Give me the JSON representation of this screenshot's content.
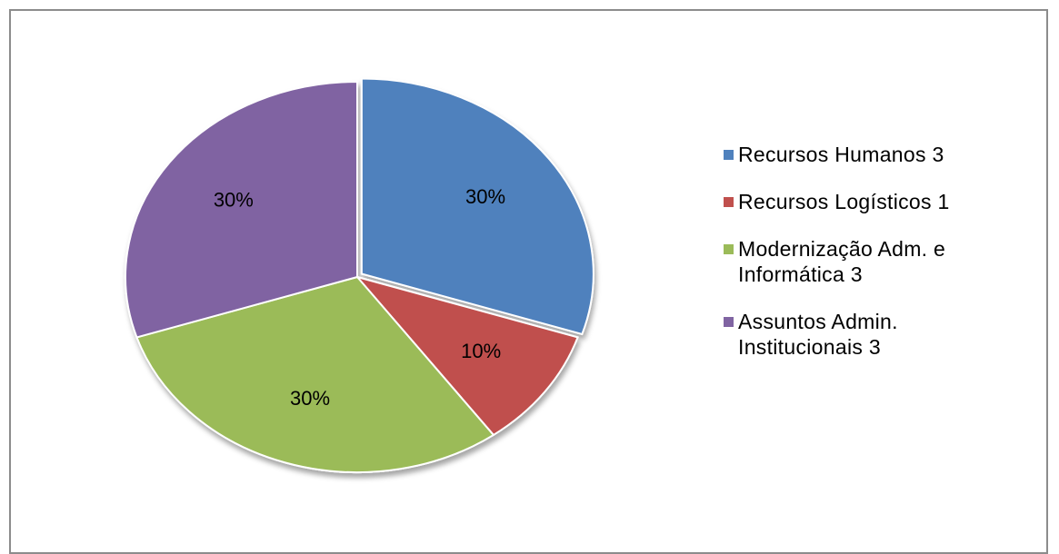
{
  "chart_data": {
    "type": "pie",
    "categories": [
      "Recursos Humanos 3",
      "Recursos Logísticos 1",
      "Modernização Adm. e Informática 3",
      "Assuntos Admin. Institucionais 3"
    ],
    "values": [
      30,
      10,
      30,
      30
    ],
    "value_labels": [
      "30%",
      "10%",
      "30%",
      "30%"
    ],
    "colors": [
      "#4f81bd",
      "#c0504d",
      "#9bbb59",
      "#8064a2"
    ],
    "legend": "right"
  }
}
